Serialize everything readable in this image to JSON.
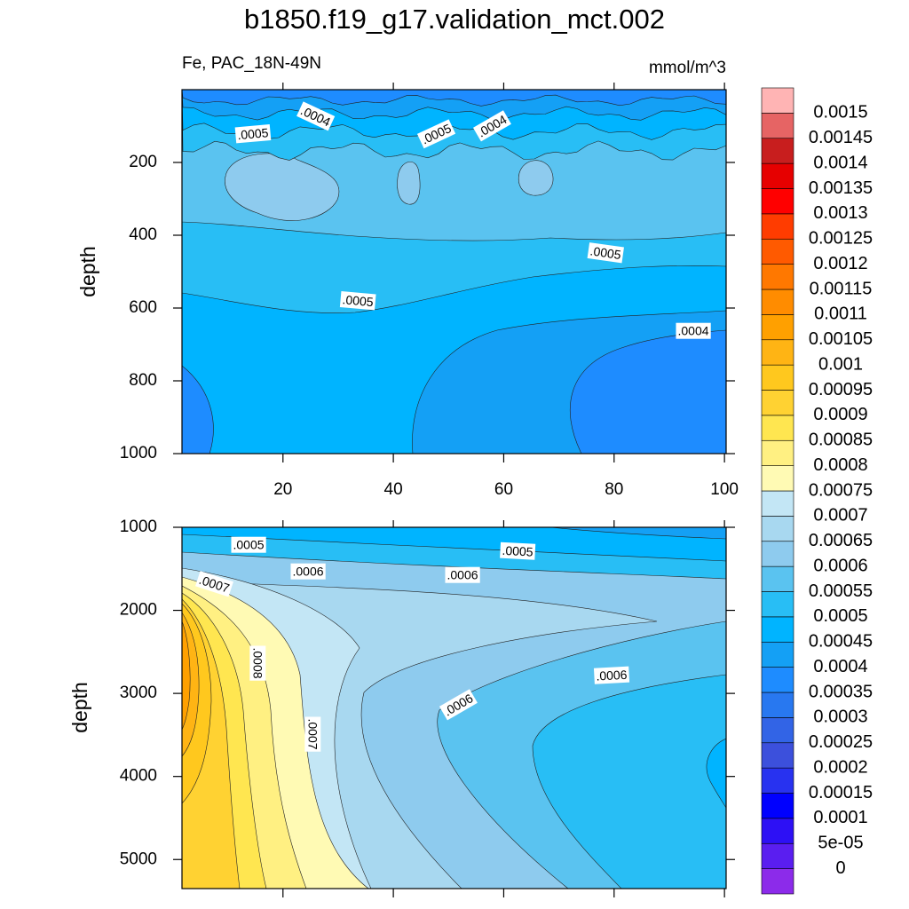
{
  "title": "b1850.f19_g17.validation_mct.002",
  "chart_data": [
    {
      "type": "contour",
      "subtitle_left": "Fe, PAC_18N-49N",
      "subtitle_right": "mmol/m^3",
      "ylabel": "depth",
      "xlim": [
        1.7,
        100.3
      ],
      "xticks": [
        20,
        40,
        60,
        80,
        100
      ],
      "xtick_labels": true,
      "ylim": [
        0,
        1000
      ],
      "yticks": [
        200,
        400,
        600,
        800,
        1000
      ],
      "y_reversed": true,
      "contour_labels": [
        ".0004",
        ".0005",
        ".0005",
        ".0004",
        ".0005",
        ".0005",
        ".0004"
      ]
    },
    {
      "type": "contour",
      "ylabel": "depth",
      "xlim": [
        1.7,
        100.3
      ],
      "xticks": [
        20,
        40,
        60,
        80,
        100
      ],
      "xtick_labels": false,
      "ylim": [
        1000,
        5350
      ],
      "yticks": [
        1000,
        2000,
        3000,
        4000,
        5000
      ],
      "y_reversed": true,
      "contour_labels": [
        ".0005",
        ".0005",
        ".0006",
        ".0006",
        ".0007",
        ".0008",
        ".0006",
        ".0006",
        ".0007"
      ]
    }
  ],
  "colorbar": {
    "levels": [
      0,
      {
        "value": 5e-05,
        "label": "5e-05"
      },
      0.0001,
      0.00015,
      0.0002,
      0.00025,
      0.0003,
      0.00035,
      0.0004,
      0.00045,
      0.0005,
      0.00055,
      0.0006,
      0.00065,
      0.0007,
      0.00075,
      0.0008,
      0.00085,
      0.0009,
      0.00095,
      0.001,
      0.00105,
      0.0011,
      0.00115,
      0.0012,
      0.00125,
      0.0013,
      0.00135,
      0.0014,
      0.00145,
      0.0015
    ],
    "colors": [
      "#8c2bea",
      "#5a1ef0",
      "#2d10f5",
      "#0000ff",
      "#2832f0",
      "#3c50dc",
      "#3264e6",
      "#2878f0",
      "#1e8cff",
      "#14a0f5",
      "#00b4ff",
      "#28bef5",
      "#5ac3f0",
      "#8ecbee",
      "#a8d8f0",
      "#c3e6f5",
      "#fffab4",
      "#fff082",
      "#ffe650",
      "#ffd232",
      "#ffc81e",
      "#ffb414",
      "#ffa000",
      "#ff8c00",
      "#ff7800",
      "#ff5a00",
      "#ff3c00",
      "#ff0000",
      "#e60000",
      "#c81e1e",
      "#e66464",
      "#ffb4b4"
    ]
  }
}
